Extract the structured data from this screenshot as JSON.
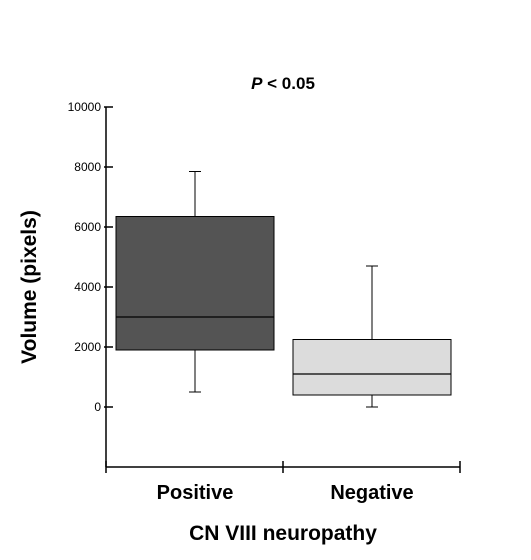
{
  "chart_data": {
    "type": "boxplot",
    "annotation": {
      "prefix": "P",
      "rest": " < 0.05"
    },
    "xlabel": "CN VIII neuropathy",
    "ylabel": "Volume (pixels)",
    "ylim": [
      -2000,
      10000
    ],
    "yticks": [
      0,
      2000,
      4000,
      6000,
      8000,
      10000
    ],
    "ytick_labels": [
      "0",
      "2000",
      "4000",
      "6000",
      "8000",
      "10000"
    ],
    "categories": [
      "Positive",
      "Negative"
    ],
    "series": [
      {
        "category": "Positive",
        "min": 500,
        "q1": 1900,
        "median": 3000,
        "q3": 6350,
        "max": 7850,
        "color": "#545454"
      },
      {
        "category": "Negative",
        "min": 0,
        "q1": 400,
        "median": 1100,
        "q3": 2250,
        "max": 4700,
        "color": "#dcdcdc"
      }
    ],
    "grid": false,
    "legend": "none"
  }
}
